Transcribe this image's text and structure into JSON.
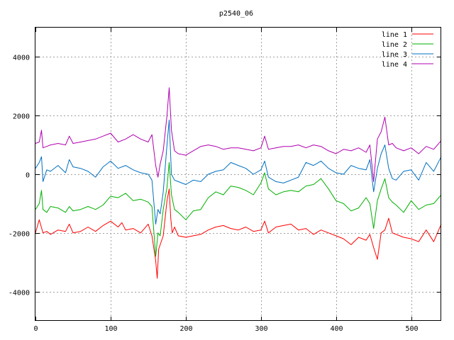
{
  "chart_data": {
    "type": "line",
    "title": "p2540_06",
    "xlabel": "",
    "ylabel": "",
    "xlim": [
      0,
      540
    ],
    "ylim": [
      -5000,
      5000
    ],
    "x_ticks": [
      0,
      100,
      200,
      300,
      400,
      500
    ],
    "y_ticks": [
      -4000,
      -2000,
      0,
      2000,
      4000
    ],
    "grid": true,
    "legend_position": "top-right",
    "series": [
      {
        "name": "line 1",
        "color": "#ff0000",
        "x": [
          0,
          5,
          10,
          15,
          20,
          30,
          40,
          45,
          50,
          60,
          70,
          80,
          90,
          100,
          110,
          115,
          120,
          130,
          140,
          150,
          155,
          160,
          162,
          164,
          170,
          175,
          178,
          180,
          182,
          185,
          190,
          200,
          210,
          220,
          230,
          240,
          250,
          260,
          270,
          280,
          290,
          300,
          305,
          310,
          320,
          330,
          340,
          350,
          360,
          370,
          380,
          390,
          400,
          410,
          420,
          430,
          440,
          445,
          450,
          455,
          460,
          465,
          470,
          475,
          480,
          490,
          500,
          510,
          520,
          530,
          540
        ],
        "y": [
          -2000,
          -1550,
          -2000,
          -1950,
          -2050,
          -1900,
          -1950,
          -1700,
          -2000,
          -1950,
          -1800,
          -1950,
          -1750,
          -1600,
          -1800,
          -1650,
          -1900,
          -1850,
          -2000,
          -1700,
          -2100,
          -2950,
          -3550,
          -2550,
          -2100,
          -900,
          -500,
          -1500,
          -2000,
          -1800,
          -2100,
          -2150,
          -2100,
          -2050,
          -1900,
          -1800,
          -1750,
          -1850,
          -1900,
          -1800,
          -1950,
          -1900,
          -1600,
          -2000,
          -1800,
          -1750,
          -1700,
          -1900,
          -1850,
          -2050,
          -1900,
          -2000,
          -2100,
          -2200,
          -2400,
          -2150,
          -2250,
          -2050,
          -2500,
          -2900,
          -2000,
          -1900,
          -1500,
          -2000,
          -2050,
          -2150,
          -2200,
          -2300,
          -1900,
          -2300,
          -1700
        ]
      },
      {
        "name": "line 2",
        "color": "#00b000",
        "x": [
          0,
          5,
          8,
          10,
          15,
          20,
          30,
          40,
          45,
          50,
          60,
          70,
          80,
          90,
          100,
          110,
          120,
          130,
          140,
          150,
          155,
          160,
          163,
          166,
          170,
          175,
          178,
          181,
          185,
          190,
          200,
          210,
          220,
          230,
          240,
          250,
          260,
          270,
          280,
          290,
          300,
          305,
          310,
          320,
          330,
          340,
          350,
          360,
          370,
          380,
          390,
          400,
          410,
          420,
          430,
          440,
          445,
          450,
          455,
          460,
          465,
          470,
          475,
          480,
          490,
          500,
          510,
          520,
          530,
          540
        ],
        "y": [
          -1200,
          -1000,
          -550,
          -1200,
          -1300,
          -1100,
          -1150,
          -1300,
          -1100,
          -1250,
          -1200,
          -1100,
          -1200,
          -1050,
          -750,
          -800,
          -650,
          -900,
          -850,
          -950,
          -1100,
          -2800,
          -2000,
          -2100,
          -1200,
          -450,
          400,
          -700,
          -1200,
          -1300,
          -1550,
          -1250,
          -1200,
          -800,
          -600,
          -700,
          -400,
          -450,
          -550,
          -700,
          -300,
          50,
          -500,
          -700,
          -600,
          -550,
          -600,
          -400,
          -350,
          -150,
          -500,
          -900,
          -1000,
          -1250,
          -1150,
          -800,
          -1000,
          -1850,
          -900,
          -500,
          -150,
          -800,
          -950,
          -1050,
          -1300,
          -900,
          -1200,
          -1050,
          -1000,
          -700
        ]
      },
      {
        "name": "line 3",
        "color": "#0070c0",
        "x": [
          0,
          5,
          8,
          10,
          15,
          20,
          30,
          40,
          45,
          50,
          60,
          70,
          80,
          90,
          100,
          110,
          120,
          130,
          140,
          150,
          155,
          160,
          163,
          166,
          170,
          175,
          178,
          181,
          185,
          190,
          200,
          210,
          220,
          230,
          240,
          250,
          260,
          270,
          280,
          290,
          300,
          305,
          310,
          320,
          330,
          340,
          350,
          360,
          370,
          380,
          390,
          400,
          410,
          420,
          430,
          440,
          445,
          450,
          455,
          460,
          465,
          470,
          475,
          480,
          490,
          500,
          510,
          520,
          530,
          540
        ],
        "y": [
          200,
          400,
          600,
          -250,
          150,
          100,
          300,
          50,
          500,
          250,
          200,
          100,
          -100,
          250,
          450,
          200,
          300,
          150,
          50,
          0,
          -200,
          -1700,
          -1200,
          -1350,
          -600,
          1000,
          1850,
          0,
          -200,
          -250,
          -350,
          -200,
          -250,
          0,
          100,
          150,
          400,
          300,
          200,
          0,
          150,
          450,
          -100,
          -250,
          -300,
          -200,
          -100,
          400,
          300,
          450,
          200,
          50,
          0,
          300,
          200,
          150,
          500,
          -600,
          200,
          700,
          1000,
          200,
          -150,
          -200,
          100,
          150,
          -200,
          400,
          100,
          600
        ]
      },
      {
        "name": "line 4",
        "color": "#b000b0",
        "x": [
          0,
          5,
          8,
          10,
          15,
          20,
          30,
          40,
          45,
          50,
          60,
          70,
          80,
          90,
          100,
          110,
          120,
          130,
          140,
          150,
          155,
          160,
          163,
          166,
          170,
          175,
          178,
          181,
          185,
          190,
          200,
          210,
          220,
          230,
          240,
          250,
          260,
          270,
          280,
          290,
          300,
          305,
          310,
          320,
          330,
          340,
          350,
          360,
          370,
          380,
          390,
          400,
          410,
          420,
          430,
          440,
          445,
          450,
          455,
          460,
          465,
          470,
          475,
          480,
          490,
          500,
          510,
          520,
          530,
          540
        ],
        "y": [
          1050,
          1100,
          1500,
          900,
          950,
          1000,
          1050,
          1000,
          1300,
          1050,
          1100,
          1150,
          1200,
          1300,
          1400,
          1100,
          1200,
          1350,
          1200,
          1100,
          1350,
          300,
          -100,
          350,
          800,
          2000,
          2950,
          1500,
          800,
          700,
          650,
          800,
          950,
          1000,
          950,
          850,
          900,
          900,
          850,
          800,
          900,
          1300,
          850,
          900,
          950,
          950,
          1000,
          900,
          1000,
          950,
          800,
          700,
          850,
          800,
          900,
          750,
          1000,
          -250,
          1200,
          1450,
          1950,
          1000,
          1050,
          900,
          800,
          900,
          700,
          950,
          850,
          1150
        ]
      }
    ]
  }
}
